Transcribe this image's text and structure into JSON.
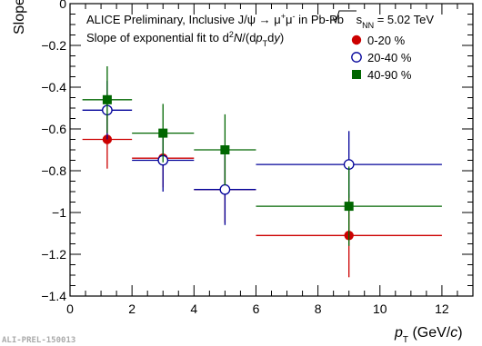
{
  "chart_data": {
    "type": "scatter",
    "xlabel": "p_T (GeV/c)",
    "ylabel": "Slope",
    "xlim": [
      0,
      13
    ],
    "ylim": [
      -1.4,
      0
    ],
    "x_ticks": [
      0,
      2,
      4,
      6,
      8,
      10,
      12
    ],
    "y_ticks": [
      0,
      -0.2,
      -0.4,
      -0.6,
      -0.8,
      -1,
      -1.2,
      -1.4
    ],
    "x_tick_labels": [
      "0",
      "2",
      "4",
      "6",
      "8",
      "10",
      "12"
    ],
    "y_tick_labels": [
      "0",
      "−0.2",
      "−0.4",
      "−0.6",
      "−0.8",
      "−1",
      "−1.2",
      "−1.4"
    ],
    "annotations": [
      "ALICE Preliminary, Inclusive J/ψ → μ⁺μ⁻ in Pb-Pb √s_NN = 5.02 TeV",
      "Slope of exponential fit to d²N/(dp_T dy)"
    ],
    "legend_position": "top-right",
    "series": [
      {
        "name": "0-20 %",
        "color": "#cc0000",
        "marker": "filled-circle",
        "points": [
          {
            "x": 1.2,
            "xerr": 0.8,
            "y": -0.65,
            "yerr": 0.14
          },
          {
            "x": 3.0,
            "xerr": 1.0,
            "y": -0.74,
            "yerr": 0.14
          },
          {
            "x": 5.0,
            "xerr": 1.0,
            "y": -0.89,
            "yerr": 0.16
          },
          {
            "x": 9.0,
            "xerr": 3.0,
            "y": -1.11,
            "yerr": 0.2
          }
        ]
      },
      {
        "name": "20-40 %",
        "color": "#000099",
        "marker": "open-circle",
        "points": [
          {
            "x": 1.2,
            "xerr": 0.8,
            "y": -0.51,
            "yerr": 0.14
          },
          {
            "x": 3.0,
            "xerr": 1.0,
            "y": -0.75,
            "yerr": 0.15
          },
          {
            "x": 5.0,
            "xerr": 1.0,
            "y": -0.89,
            "yerr": 0.17
          },
          {
            "x": 9.0,
            "xerr": 3.0,
            "y": -0.77,
            "yerr": 0.16
          }
        ]
      },
      {
        "name": "40-90 %",
        "color": "#006600",
        "marker": "filled-square",
        "points": [
          {
            "x": 1.2,
            "xerr": 0.8,
            "y": -0.46,
            "yerr": 0.16
          },
          {
            "x": 3.0,
            "xerr": 1.0,
            "y": -0.62,
            "yerr": 0.14
          },
          {
            "x": 5.0,
            "xerr": 1.0,
            "y": -0.7,
            "yerr": 0.17
          },
          {
            "x": 9.0,
            "xerr": 3.0,
            "y": -0.97,
            "yerr": 0.19
          }
        ]
      }
    ]
  },
  "footer": {
    "preliminary_id": "ALI-PREL-150013"
  }
}
